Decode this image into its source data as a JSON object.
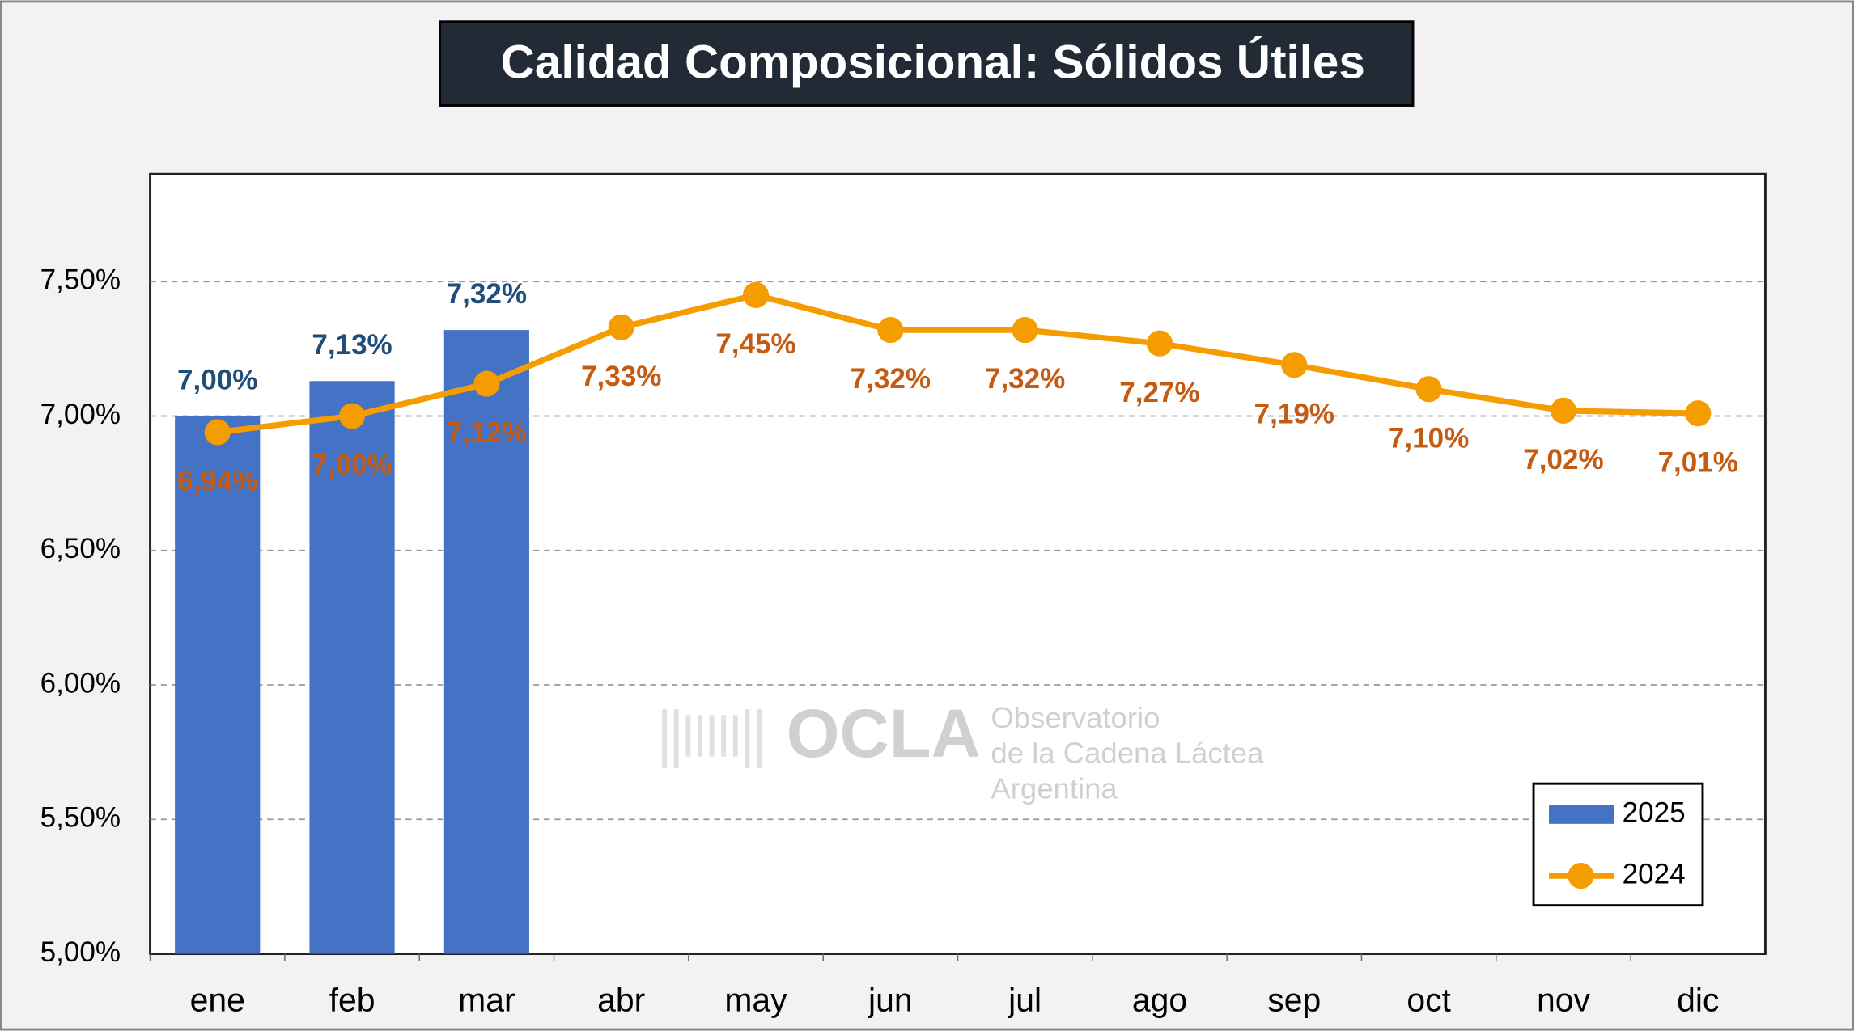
{
  "chart_data": {
    "type": "bar_line",
    "title": "Calidad Composicional: Sólidos Útiles",
    "categories": [
      "ene",
      "feb",
      "mar",
      "abr",
      "may",
      "jun",
      "jul",
      "ago",
      "sep",
      "oct",
      "nov",
      "dic"
    ],
    "series": [
      {
        "name": "2025",
        "type": "bar",
        "color": "#4472c4",
        "values": [
          7.0,
          7.13,
          7.32,
          null,
          null,
          null,
          null,
          null,
          null,
          null,
          null,
          null
        ],
        "value_labels": [
          "7,00%",
          "7,13%",
          "7,32%",
          null,
          null,
          null,
          null,
          null,
          null,
          null,
          null,
          null
        ]
      },
      {
        "name": "2024",
        "type": "line",
        "color": "#f59c00",
        "values": [
          6.94,
          7.0,
          7.12,
          7.33,
          7.45,
          7.32,
          7.32,
          7.27,
          7.19,
          7.1,
          7.02,
          7.01
        ],
        "value_labels": [
          "6,94%",
          "7,00%",
          "7,12%",
          "7,33%",
          "7,45%",
          "7,32%",
          "7,32%",
          "7,27%",
          "7,19%",
          "7,10%",
          "7,02%",
          "7,01%"
        ]
      }
    ],
    "ylim": [
      5,
      7.9
    ],
    "yticks": [
      {
        "value": 5,
        "label": "5,00%"
      },
      {
        "value": 5.5,
        "label": "5,50%"
      },
      {
        "value": 6,
        "label": "6,00%"
      },
      {
        "value": 6.5,
        "label": "6,50%"
      },
      {
        "value": 7,
        "label": "7,00%"
      },
      {
        "value": 7.5,
        "label": "7,50%"
      }
    ],
    "grid": true,
    "legend": "bottom-right",
    "watermark": {
      "name": "OCLA",
      "lines": [
        "Observatorio",
        "de la Cadena Láctea",
        "Argentina"
      ]
    }
  }
}
